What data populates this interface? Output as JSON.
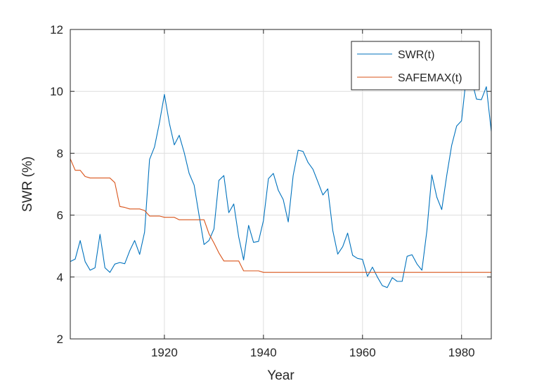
{
  "chart_data": {
    "type": "line",
    "xlabel": "Year",
    "ylabel": "SWR (%)",
    "xlim": [
      1901,
      1986
    ],
    "ylim": [
      2,
      12
    ],
    "xticks": [
      "1920",
      "1940",
      "1960",
      "1980"
    ],
    "xtick_values": [
      1920,
      1940,
      1960,
      1980
    ],
    "yticks": [
      "2",
      "4",
      "6",
      "8",
      "10",
      "12"
    ],
    "ytick_values": [
      2,
      4,
      6,
      8,
      10,
      12
    ],
    "grid": true,
    "legend_position": "top-right",
    "x": [
      1901,
      1902,
      1903,
      1904,
      1905,
      1906,
      1907,
      1908,
      1909,
      1910,
      1911,
      1912,
      1913,
      1914,
      1915,
      1916,
      1917,
      1918,
      1919,
      1920,
      1921,
      1922,
      1923,
      1924,
      1925,
      1926,
      1927,
      1928,
      1929,
      1930,
      1931,
      1932,
      1933,
      1934,
      1935,
      1936,
      1937,
      1938,
      1939,
      1940,
      1941,
      1942,
      1943,
      1944,
      1945,
      1946,
      1947,
      1948,
      1949,
      1950,
      1951,
      1952,
      1953,
      1954,
      1955,
      1956,
      1957,
      1958,
      1959,
      1960,
      1961,
      1962,
      1963,
      1964,
      1965,
      1966,
      1967,
      1968,
      1969,
      1970,
      1971,
      1972,
      1973,
      1974,
      1975,
      1976,
      1977,
      1978,
      1979,
      1980,
      1981,
      1982,
      1983,
      1984,
      1985,
      1986
    ],
    "series": [
      {
        "name": "SWR(t)",
        "color": "#0072BD",
        "values": [
          4.5,
          4.58,
          5.18,
          4.5,
          4.22,
          4.3,
          5.38,
          4.3,
          4.15,
          4.42,
          4.47,
          4.43,
          4.85,
          5.18,
          4.73,
          5.45,
          7.8,
          8.2,
          8.98,
          9.9,
          8.98,
          8.27,
          8.58,
          8.02,
          7.35,
          6.97,
          6.0,
          5.05,
          5.18,
          5.55,
          7.12,
          7.28,
          6.08,
          6.36,
          5.3,
          4.55,
          5.67,
          5.12,
          5.15,
          5.82,
          7.18,
          7.35,
          6.8,
          6.5,
          5.78,
          7.28,
          8.1,
          8.06,
          7.7,
          7.48,
          7.07,
          6.65,
          6.85,
          5.5,
          4.74,
          4.98,
          5.42,
          4.7,
          4.6,
          4.57,
          4.02,
          4.32,
          4.0,
          3.72,
          3.66,
          3.98,
          3.86,
          3.86,
          4.67,
          4.72,
          4.42,
          4.22,
          5.5,
          7.3,
          6.58,
          6.18,
          7.28,
          8.25,
          8.88,
          9.05,
          10.55,
          10.4,
          9.75,
          9.73,
          10.15,
          8.7
        ]
      },
      {
        "name": "SAFEMAX(t)",
        "color": "#D95319",
        "values": [
          7.82,
          7.45,
          7.45,
          7.25,
          7.2,
          7.2,
          7.2,
          7.2,
          7.2,
          7.05,
          6.28,
          6.25,
          6.2,
          6.2,
          6.2,
          6.15,
          5.97,
          5.97,
          5.97,
          5.93,
          5.93,
          5.93,
          5.85,
          5.85,
          5.85,
          5.85,
          5.85,
          5.85,
          5.4,
          5.1,
          4.78,
          4.52,
          4.52,
          4.52,
          4.52,
          4.2,
          4.2,
          4.2,
          4.2,
          4.15,
          4.15,
          4.15,
          4.15,
          4.15,
          4.15,
          4.15,
          4.15,
          4.15,
          4.15,
          4.15,
          4.15,
          4.15,
          4.15,
          4.15,
          4.15,
          4.15,
          4.15,
          4.15,
          4.15,
          4.15,
          4.15,
          4.15,
          4.15,
          4.15,
          4.15,
          4.15,
          4.15,
          4.15,
          4.15,
          4.15,
          4.15,
          4.15,
          4.15,
          4.15,
          4.15,
          4.15,
          4.15,
          4.15,
          4.15,
          4.15,
          4.15,
          4.15,
          4.15,
          4.15,
          4.15,
          4.15
        ]
      }
    ]
  }
}
